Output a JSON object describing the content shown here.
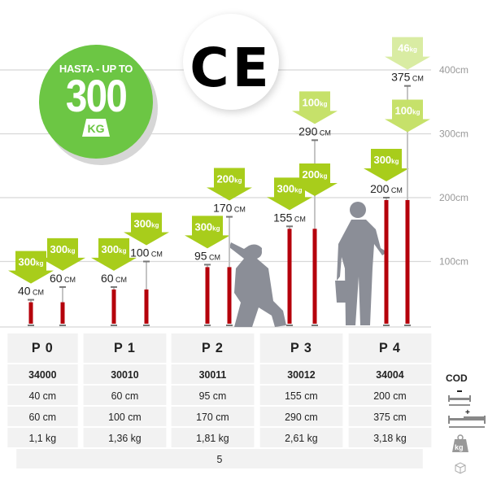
{
  "badge": {
    "line1": "HASTA - UP TO",
    "value": "300",
    "unit": "KG",
    "color": "#6cc644"
  },
  "certification": "CE",
  "axis": {
    "ticks": [
      "100cm",
      "200cm",
      "300cm",
      "400cm"
    ]
  },
  "props": [
    {
      "model": "P 0",
      "closed": {
        "height": "40",
        "unit": "CM",
        "loads": [
          "300kg"
        ]
      },
      "extended": {
        "height": "60",
        "unit": "CM",
        "loads": [
          "300kg"
        ]
      }
    },
    {
      "model": "P 1",
      "closed": {
        "height": "60",
        "unit": "CM",
        "loads": [
          "300kg"
        ]
      },
      "extended": {
        "height": "100",
        "unit": "CM",
        "loads": [
          "300kg"
        ]
      }
    },
    {
      "model": "P 2",
      "closed": {
        "height": "95",
        "unit": "CM",
        "loads": [
          "300kg"
        ]
      },
      "extended": {
        "height": "170",
        "unit": "CM",
        "loads": [
          "200kg"
        ]
      }
    },
    {
      "model": "P 3",
      "closed": {
        "height": "155",
        "unit": "CM",
        "loads": [
          "300kg"
        ]
      },
      "extended": {
        "height": "290",
        "unit": "CM",
        "loads": [
          "200kg",
          "100kg"
        ]
      }
    },
    {
      "model": "P 4",
      "closed": {
        "height": "200",
        "unit": "CM",
        "loads": [
          "300kg"
        ]
      },
      "extended": {
        "height": "375",
        "unit": "CM",
        "loads": [
          "100kg",
          "46kg"
        ]
      }
    }
  ],
  "colors": {
    "tube": "#b5000b",
    "rod": "#c4c4c4",
    "load_300": "#a8cd1b",
    "load_200": "#a8cd1b",
    "load_100": "#c6e16a",
    "load_46": "#d9eca3",
    "silhouette": "#8b8e97"
  },
  "table": {
    "headers": [
      "P 0",
      "P 1",
      "P 2",
      "P 3",
      "P 4"
    ],
    "codes": [
      "34000",
      "30010",
      "30011",
      "30012",
      "34004"
    ],
    "min_length": [
      "40 cm",
      "60 cm",
      "95 cm",
      "155 cm",
      "200 cm"
    ],
    "max_length": [
      "60 cm",
      "100 cm",
      "170 cm",
      "290 cm",
      "375 cm"
    ],
    "weight": [
      "1,1 kg",
      "1,36 kg",
      "1,81 kg",
      "2,61 kg",
      "3,18 kg"
    ],
    "package_qty": "5"
  },
  "legend": {
    "code_label": "COD",
    "min_icon": "min-length-icon",
    "max_icon": "max-length-icon",
    "weight_icon": "weight-kg-icon",
    "package_icon": "box-icon"
  }
}
